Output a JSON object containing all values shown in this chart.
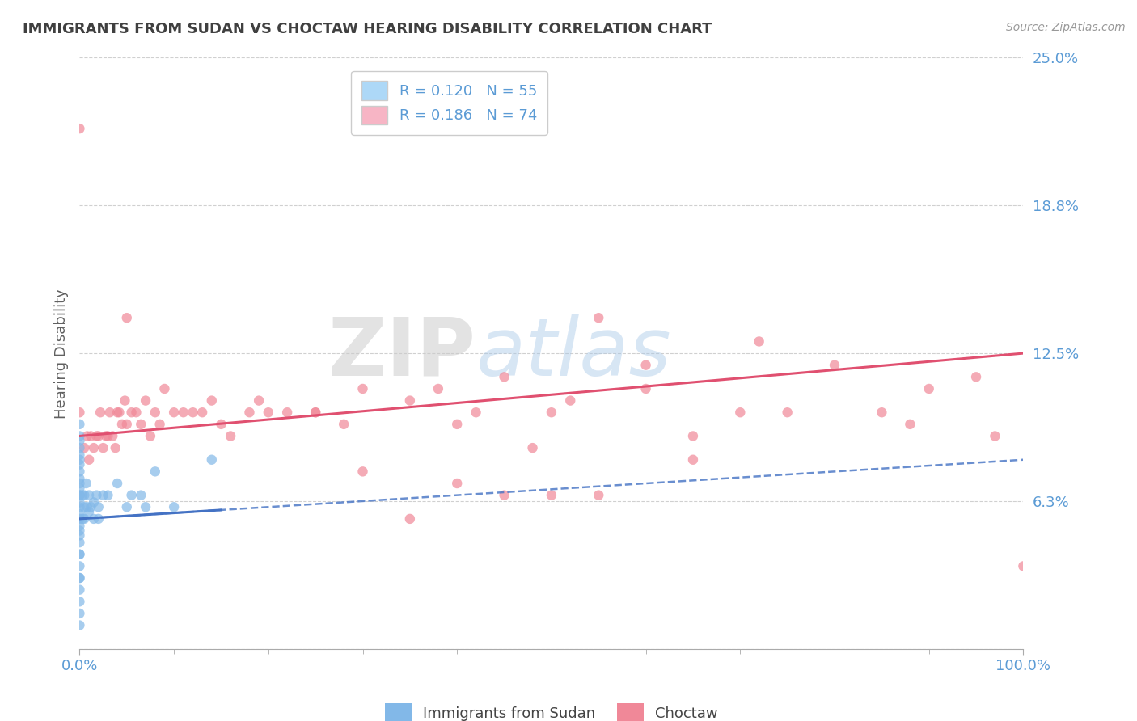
{
  "title": "IMMIGRANTS FROM SUDAN VS CHOCTAW HEARING DISABILITY CORRELATION CHART",
  "source": "Source: ZipAtlas.com",
  "ylabel": "Hearing Disability",
  "xlim": [
    0.0,
    1.0
  ],
  "ylim": [
    0.0,
    0.25
  ],
  "yticks": [
    0.0,
    0.0625,
    0.125,
    0.1875,
    0.25
  ],
  "ytick_labels": [
    "",
    "6.3%",
    "12.5%",
    "18.8%",
    "25.0%"
  ],
  "xtick_labels": [
    "0.0%",
    "100.0%"
  ],
  "legend1_label": "R = 0.120   N = 55",
  "legend2_label": "R = 0.186   N = 74",
  "legend1_color": "#add8f7",
  "legend2_color": "#f7b5c5",
  "scatter1_color": "#82b8e8",
  "scatter2_color": "#f08898",
  "line1_color": "#4472c4",
  "line2_color": "#e05070",
  "watermark_zip": "ZIP",
  "watermark_atlas": "atlas",
  "background_color": "#ffffff",
  "grid_color": "#d0d0d0",
  "title_color": "#404040",
  "axis_label_color": "#5b9bd5",
  "tick_label_color": "#5b9bd5",
  "ylabel_color": "#606060",
  "line1_intercept": 0.055,
  "line1_slope": 0.025,
  "line2_intercept": 0.09,
  "line2_slope": 0.035,
  "scatter1_x": [
    0.0,
    0.0,
    0.0,
    0.0,
    0.0,
    0.0,
    0.0,
    0.0,
    0.0,
    0.0,
    0.0,
    0.0,
    0.0,
    0.0,
    0.0,
    0.0,
    0.0,
    0.0,
    0.0,
    0.0,
    0.0,
    0.0,
    0.0,
    0.0,
    0.0,
    0.0,
    0.0,
    0.0,
    0.0,
    0.0,
    0.003,
    0.003,
    0.005,
    0.005,
    0.005,
    0.007,
    0.008,
    0.01,
    0.01,
    0.012,
    0.015,
    0.015,
    0.018,
    0.02,
    0.02,
    0.025,
    0.03,
    0.04,
    0.05,
    0.055,
    0.065,
    0.07,
    0.08,
    0.1,
    0.14
  ],
  "scatter1_y": [
    0.01,
    0.015,
    0.02,
    0.025,
    0.03,
    0.03,
    0.035,
    0.04,
    0.04,
    0.045,
    0.048,
    0.05,
    0.052,
    0.055,
    0.057,
    0.06,
    0.062,
    0.065,
    0.065,
    0.068,
    0.07,
    0.072,
    0.075,
    0.078,
    0.08,
    0.082,
    0.085,
    0.088,
    0.09,
    0.095,
    0.055,
    0.065,
    0.055,
    0.06,
    0.065,
    0.07,
    0.06,
    0.058,
    0.065,
    0.06,
    0.055,
    0.062,
    0.065,
    0.055,
    0.06,
    0.065,
    0.065,
    0.07,
    0.06,
    0.065,
    0.065,
    0.06,
    0.075,
    0.06,
    0.08
  ],
  "scatter2_x": [
    0.0,
    0.0,
    0.005,
    0.008,
    0.01,
    0.012,
    0.015,
    0.018,
    0.02,
    0.022,
    0.025,
    0.028,
    0.03,
    0.032,
    0.035,
    0.038,
    0.04,
    0.042,
    0.045,
    0.048,
    0.05,
    0.055,
    0.06,
    0.065,
    0.07,
    0.075,
    0.08,
    0.085,
    0.09,
    0.1,
    0.11,
    0.12,
    0.13,
    0.14,
    0.15,
    0.16,
    0.18,
    0.19,
    0.2,
    0.22,
    0.25,
    0.28,
    0.3,
    0.35,
    0.38,
    0.4,
    0.42,
    0.45,
    0.5,
    0.52,
    0.55,
    0.6,
    0.65,
    0.7,
    0.72,
    0.75,
    0.8,
    0.85,
    0.88,
    0.9,
    0.95,
    0.97,
    1.0,
    0.45,
    0.3,
    0.25,
    0.5,
    0.55,
    0.35,
    0.4,
    0.6,
    0.65,
    0.05,
    0.48
  ],
  "scatter2_y": [
    0.1,
    0.22,
    0.085,
    0.09,
    0.08,
    0.09,
    0.085,
    0.09,
    0.09,
    0.1,
    0.085,
    0.09,
    0.09,
    0.1,
    0.09,
    0.085,
    0.1,
    0.1,
    0.095,
    0.105,
    0.095,
    0.1,
    0.1,
    0.095,
    0.105,
    0.09,
    0.1,
    0.095,
    0.11,
    0.1,
    0.1,
    0.1,
    0.1,
    0.105,
    0.095,
    0.09,
    0.1,
    0.105,
    0.1,
    0.1,
    0.1,
    0.095,
    0.11,
    0.105,
    0.11,
    0.095,
    0.1,
    0.115,
    0.1,
    0.105,
    0.14,
    0.11,
    0.09,
    0.1,
    0.13,
    0.1,
    0.12,
    0.1,
    0.095,
    0.11,
    0.115,
    0.09,
    0.035,
    0.065,
    0.075,
    0.1,
    0.065,
    0.065,
    0.055,
    0.07,
    0.12,
    0.08,
    0.14,
    0.085
  ]
}
